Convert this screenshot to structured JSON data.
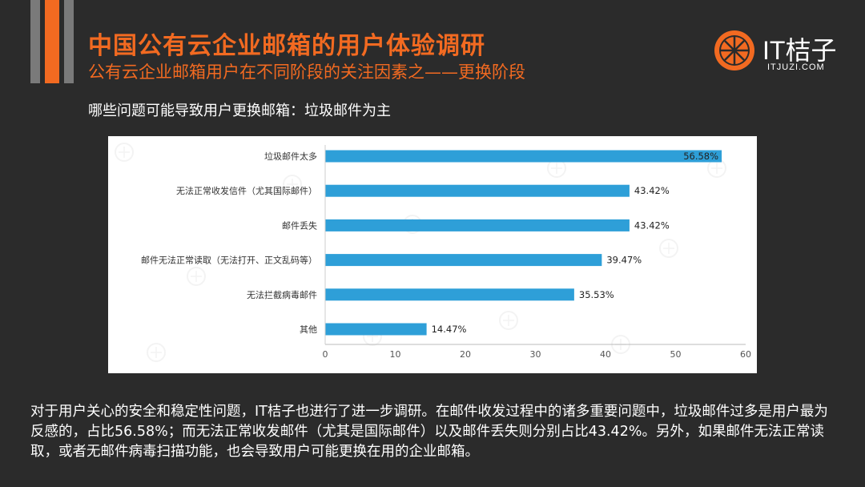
{
  "header": {
    "title": "中国公有云企业邮箱的用户体验调研",
    "subtitle": "公有云企业邮箱用户在不同阶段的关注因素之——更换阶段"
  },
  "logo": {
    "text": "IT桔子",
    "url": "ITJUZI.COM",
    "color": "#f26a21"
  },
  "question": "哪些问题可能导致用户更换邮箱：垃圾邮件为主",
  "chart_data": {
    "type": "bar",
    "orientation": "horizontal",
    "categories": [
      "垃圾邮件太多",
      "无法正常收发信件（尤其国际邮件）",
      "邮件丢失",
      "邮件无法正常读取（无法打开、正文乱码等）",
      "无法拦截病毒邮件",
      "其他"
    ],
    "values": [
      56.58,
      43.42,
      43.42,
      39.47,
      35.53,
      14.47
    ],
    "value_labels": [
      "56.58%",
      "43.42%",
      "43.42%",
      "39.47%",
      "35.53%",
      "14.47%"
    ],
    "xlim": [
      0,
      60
    ],
    "x_ticks": [
      0,
      10,
      20,
      30,
      40,
      50,
      60
    ],
    "bar_color": "#2e9fd8",
    "grid": false,
    "legend": "none"
  },
  "paragraph": "对于用户关心的安全和稳定性问题，IT桔子也进行了进一步调研。在邮件收发过程中的诸多重要问题中，垃圾邮件过多是用户最为反感的，占比56.58%；而无法正常收发邮件（尤其是国际邮件）以及邮件丢失则分别占比43.42%。另外，如果邮件无法正常读取，或者无邮件病毒扫描功能，也会导致用户可能更换在用的企业邮箱。"
}
